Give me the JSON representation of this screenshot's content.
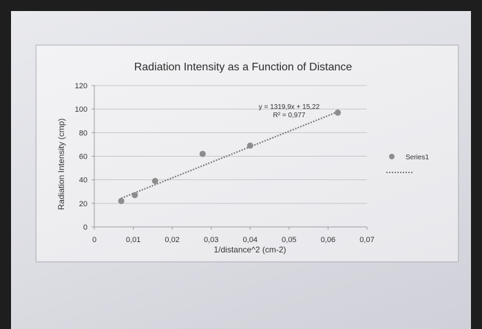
{
  "chart_data": {
    "type": "scatter",
    "title": "Radiation Intensity as a Function of Distance",
    "xlabel": "1/distance^2 (cm-2)",
    "ylabel": "Radiation Intensity (cmp)",
    "xlim": [
      0,
      0.07
    ],
    "ylim": [
      0,
      120
    ],
    "x_ticks": [
      "0",
      "0,01",
      "0,02",
      "0,03",
      "0,04",
      "0,05",
      "0,06",
      "0,07"
    ],
    "y_ticks": [
      "0",
      "20",
      "40",
      "60",
      "80",
      "100",
      "120"
    ],
    "grid": true,
    "legend_position": "right",
    "series": [
      {
        "name": "Series1",
        "color": "#8c8c8c",
        "points": [
          {
            "x": 0.0069,
            "y": 22
          },
          {
            "x": 0.0104,
            "y": 27
          },
          {
            "x": 0.0156,
            "y": 39
          },
          {
            "x": 0.0278,
            "y": 62
          },
          {
            "x": 0.04,
            "y": 69
          },
          {
            "x": 0.0625,
            "y": 97
          }
        ]
      }
    ],
    "trendline": {
      "type": "linear",
      "slope": 1319.9,
      "intercept": 15.22,
      "x_range": [
        0.0069,
        0.0625
      ],
      "equation_text": "y = 1319,9x + 15,22",
      "r2_text": "R² = 0,977",
      "style": "dotted",
      "color": "#7a7a7a"
    }
  }
}
